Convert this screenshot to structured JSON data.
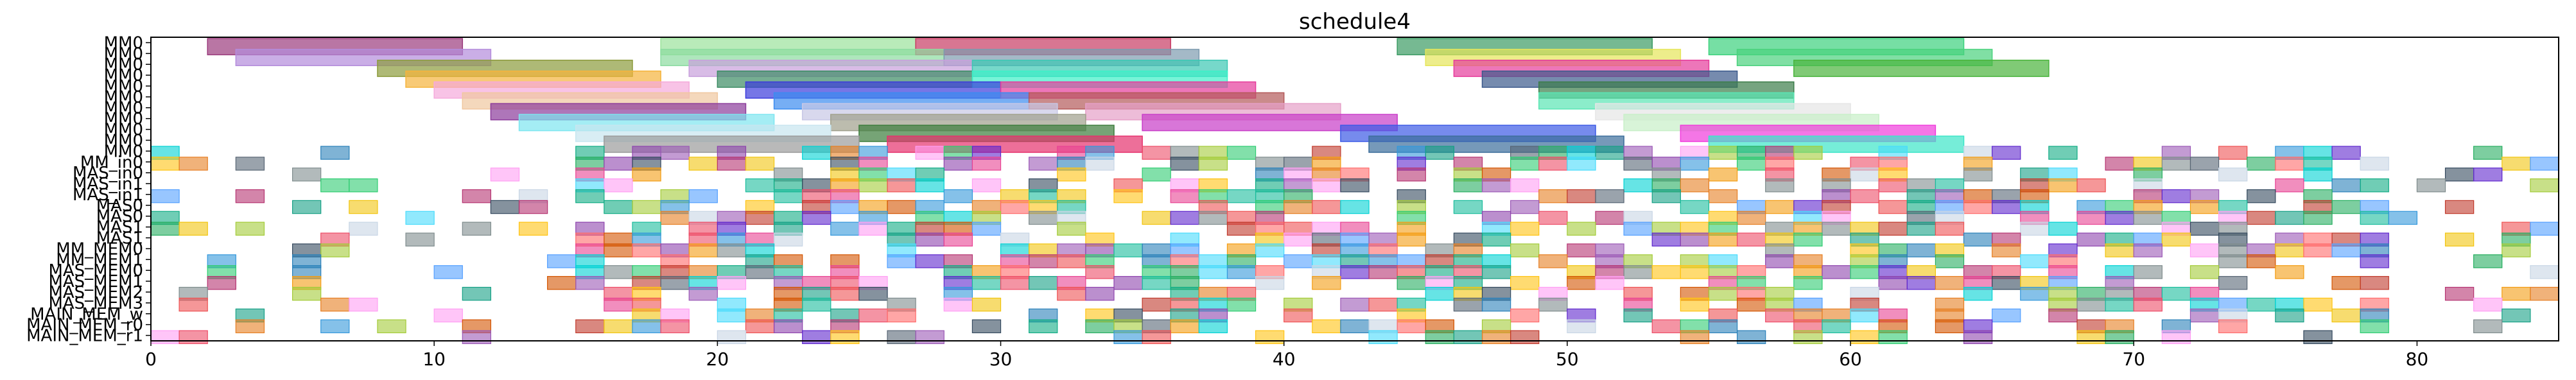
{
  "chart_data": {
    "type": "gantt",
    "title": "schedule4",
    "xlabel": "",
    "ylabel": "",
    "xlim": [
      0,
      85
    ],
    "x_ticks": [
      0,
      10,
      20,
      30,
      40,
      50,
      60,
      70,
      80
    ],
    "grid": false,
    "legend": "none",
    "rows": [
      "MM0",
      "MM0",
      "MM0",
      "MM0",
      "MM0",
      "MM0",
      "MM0",
      "MM0",
      "MM0",
      "MM0",
      "MM0",
      "MM_in0",
      "MAS_in0",
      "MAS_in1",
      "MAS_in1",
      "MAS0",
      "MAS0",
      "MAS1",
      "MAS1",
      "MM_MEM0",
      "MM_MEM1",
      "MAS_MEM0",
      "MAS_MEM1",
      "MAS_MEM2",
      "MAS_MEM3",
      "MAIN_MEM_w",
      "MAIN_MEM_r0",
      "MAIN_MEM_r1"
    ],
    "palette": [
      "#c0392b",
      "#2ecc71",
      "#3498db",
      "#9b59b6",
      "#f1c40f",
      "#e67e22",
      "#1abc9c",
      "#e84393",
      "#34495e",
      "#27ae60",
      "#8e44ad",
      "#16a085",
      "#d35400",
      "#2980b9",
      "#f39c12",
      "#7f8c8d",
      "#ff6b6b",
      "#48dbfb",
      "#ff9ff3",
      "#54a0ff",
      "#5f27cd",
      "#00d2d3",
      "#10ac84",
      "#ee5253",
      "#c8d6e5",
      "#576574",
      "#a3cb38",
      "#ffc312",
      "#ed4c67",
      "#b53471"
    ],
    "tasks": [
      {
        "row": 0,
        "start": 2,
        "end": 11,
        "color": "#9b3c7d"
      },
      {
        "row": 0,
        "start": 18,
        "end": 27,
        "color": "#9be39b"
      },
      {
        "row": 0,
        "start": 27,
        "end": 36,
        "color": "#c83c64"
      },
      {
        "row": 0,
        "start": 44,
        "end": 53,
        "color": "#3c9b64"
      },
      {
        "row": 0,
        "start": 55,
        "end": 64,
        "color": "#3cd27d"
      },
      {
        "row": 1,
        "start": 3,
        "end": 12,
        "color": "#b48cdc"
      },
      {
        "row": 1,
        "start": 18,
        "end": 28,
        "color": "#8cdca0"
      },
      {
        "row": 1,
        "start": 28,
        "end": 37,
        "color": "#7d9baf"
      },
      {
        "row": 1,
        "start": 45,
        "end": 54,
        "color": "#e6e65a"
      },
      {
        "row": 1,
        "start": 56,
        "end": 65,
        "color": "#4ad27d"
      },
      {
        "row": 2,
        "start": 8,
        "end": 17,
        "color": "#8c9b3c"
      },
      {
        "row": 2,
        "start": 19,
        "end": 29,
        "color": "#c8a0dc"
      },
      {
        "row": 2,
        "start": 29,
        "end": 38,
        "color": "#3cc8b4"
      },
      {
        "row": 2,
        "start": 46,
        "end": 55,
        "color": "#e63c9b"
      },
      {
        "row": 2,
        "start": 58,
        "end": 67,
        "color": "#4ab43c"
      },
      {
        "row": 3,
        "start": 9,
        "end": 18,
        "color": "#f5b43c"
      },
      {
        "row": 3,
        "start": 20,
        "end": 29,
        "color": "#3c8c64"
      },
      {
        "row": 3,
        "start": 29,
        "end": 38,
        "color": "#3cf0c8"
      },
      {
        "row": 3,
        "start": 47,
        "end": 56,
        "color": "#3c5a8c"
      },
      {
        "row": 4,
        "start": 10,
        "end": 19,
        "color": "#f5aadc"
      },
      {
        "row": 4,
        "start": 21,
        "end": 30,
        "color": "#3c3cdc"
      },
      {
        "row": 4,
        "start": 30,
        "end": 39,
        "color": "#e63c9b"
      },
      {
        "row": 4,
        "start": 49,
        "end": 58,
        "color": "#3c7d4a"
      },
      {
        "row": 5,
        "start": 11,
        "end": 20,
        "color": "#f0c8a0"
      },
      {
        "row": 5,
        "start": 22,
        "end": 31,
        "color": "#3c8cf0"
      },
      {
        "row": 5,
        "start": 31,
        "end": 40,
        "color": "#b45a5a"
      },
      {
        "row": 5,
        "start": 49,
        "end": 58,
        "color": "#5ae6b4"
      },
      {
        "row": 6,
        "start": 12,
        "end": 21,
        "color": "#8c3c9b"
      },
      {
        "row": 6,
        "start": 23,
        "end": 32,
        "color": "#c8c8e6"
      },
      {
        "row": 6,
        "start": 33,
        "end": 42,
        "color": "#e6a0c8"
      },
      {
        "row": 6,
        "start": 51,
        "end": 60,
        "color": "#e6e6e6"
      },
      {
        "row": 7,
        "start": 13,
        "end": 22,
        "color": "#7de6f0"
      },
      {
        "row": 7,
        "start": 24,
        "end": 33,
        "color": "#a0a08c"
      },
      {
        "row": 7,
        "start": 35,
        "end": 44,
        "color": "#c83cc8"
      },
      {
        "row": 7,
        "start": 52,
        "end": 61,
        "color": "#c8f0c8"
      },
      {
        "row": 8,
        "start": 15,
        "end": 24,
        "color": "#c8e6f0"
      },
      {
        "row": 8,
        "start": 25,
        "end": 34,
        "color": "#3c7d3c"
      },
      {
        "row": 8,
        "start": 42,
        "end": 51,
        "color": "#3c5ae6"
      },
      {
        "row": 8,
        "start": 54,
        "end": 63,
        "color": "#f03cdc"
      },
      {
        "row": 9,
        "start": 16,
        "end": 25,
        "color": "#9b9b9b"
      },
      {
        "row": 9,
        "start": 26,
        "end": 35,
        "color": "#e6326e"
      },
      {
        "row": 9,
        "start": 43,
        "end": 52,
        "color": "#3c6e9b"
      },
      {
        "row": 9,
        "start": 55,
        "end": 64,
        "color": "#3ce6c8"
      }
    ],
    "dense_rows": {
      "first_row": 10,
      "last_row": 27,
      "x_min": 0,
      "x_max": 85,
      "cell": 1,
      "seed": 4
    }
  }
}
